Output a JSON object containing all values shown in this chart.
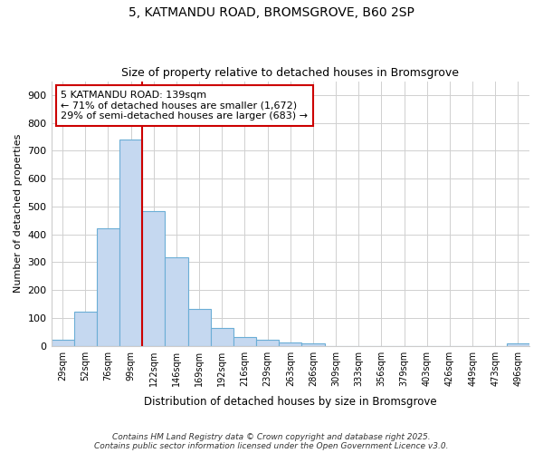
{
  "title_line1": "5, KATMANDU ROAD, BROMSGROVE, B60 2SP",
  "title_line2": "Size of property relative to detached houses in Bromsgrove",
  "xlabel": "Distribution of detached houses by size in Bromsgrove",
  "ylabel": "Number of detached properties",
  "categories": [
    "29sqm",
    "52sqm",
    "76sqm",
    "99sqm",
    "122sqm",
    "146sqm",
    "169sqm",
    "192sqm",
    "216sqm",
    "239sqm",
    "263sqm",
    "286sqm",
    "309sqm",
    "333sqm",
    "356sqm",
    "379sqm",
    "403sqm",
    "426sqm",
    "449sqm",
    "473sqm",
    "496sqm"
  ],
  "values": [
    22,
    122,
    422,
    740,
    483,
    318,
    132,
    65,
    30,
    22,
    12,
    8,
    0,
    0,
    0,
    0,
    0,
    0,
    0,
    0,
    8
  ],
  "bar_color": "#c5d8f0",
  "bar_edge_color": "#6baed6",
  "background_color": "#ffffff",
  "grid_color": "#d0d0d0",
  "vline_x_index": 4,
  "vline_color": "#cc0000",
  "annotation_text": "5 KATMANDU ROAD: 139sqm\n← 71% of detached houses are smaller (1,672)\n29% of semi-detached houses are larger (683) →",
  "annotation_box_color": "#ffffff",
  "annotation_box_edge": "#cc0000",
  "ylim": [
    0,
    950
  ],
  "yticks": [
    0,
    100,
    200,
    300,
    400,
    500,
    600,
    700,
    800,
    900
  ],
  "footnote1": "Contains HM Land Registry data © Crown copyright and database right 2025.",
  "footnote2": "Contains public sector information licensed under the Open Government Licence v3.0."
}
